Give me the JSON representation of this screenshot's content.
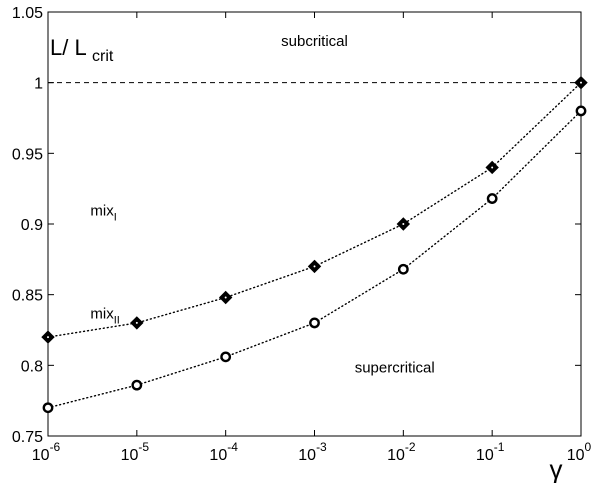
{
  "chart_data": {
    "type": "line",
    "x_scale": "log",
    "x_ticks": [
      {
        "value": 1e-06,
        "base": "10",
        "exp": "-6"
      },
      {
        "value": 1e-05,
        "base": "10",
        "exp": "-5"
      },
      {
        "value": 0.0001,
        "base": "10",
        "exp": "-4"
      },
      {
        "value": 0.001,
        "base": "10",
        "exp": "-3"
      },
      {
        "value": 0.01,
        "base": "10",
        "exp": "-2"
      },
      {
        "value": 0.1,
        "base": "10",
        "exp": "-1"
      },
      {
        "value": 1,
        "base": "10",
        "exp": "0"
      }
    ],
    "y_ticks": [
      "0.75",
      "0.8",
      "0.85",
      "0.9",
      "0.95",
      "1",
      "1.05"
    ],
    "xlim": [
      1e-06,
      1
    ],
    "ylim": [
      0.75,
      1.05
    ],
    "xlabel": "γ",
    "ylabel": {
      "main": "L/ L",
      "sub": "crit"
    },
    "reference_line": {
      "y": 1.0,
      "style": "dashed"
    },
    "series": [
      {
        "marker": "diamond",
        "line_style": "dotted",
        "x": [
          1e-06,
          1e-05,
          0.0001,
          0.001,
          0.01,
          0.1,
          1
        ],
        "y": [
          0.82,
          0.83,
          0.848,
          0.87,
          0.9,
          0.94,
          1.0
        ]
      },
      {
        "marker": "circle",
        "line_style": "dotted",
        "x": [
          1e-06,
          1e-05,
          0.0001,
          0.001,
          0.01,
          0.1,
          1
        ],
        "y": [
          0.77,
          0.786,
          0.806,
          0.83,
          0.868,
          0.918,
          0.98
        ]
      }
    ],
    "annotations": [
      {
        "text": "subcritical",
        "sub": "",
        "x": 0.001,
        "y": 1.026
      },
      {
        "text": "mix",
        "sub": "I",
        "x": 3e-06,
        "y": 0.906
      },
      {
        "text": "mix",
        "sub": "II",
        "x": 3e-06,
        "y": 0.833
      },
      {
        "text": "supercritical",
        "sub": "",
        "x": 0.008,
        "y": 0.795
      }
    ],
    "grid": false,
    "legend": "none"
  }
}
